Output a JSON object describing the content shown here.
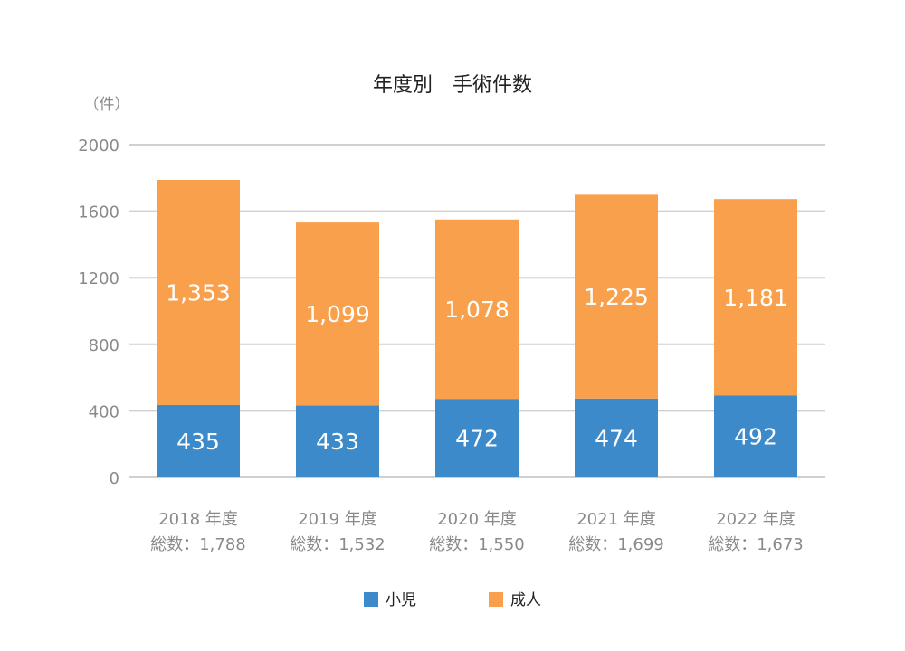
{
  "chart_data": {
    "type": "bar",
    "stacked": true,
    "title": "年度別　手術件数",
    "unit_label": "（件）",
    "ylim": [
      0,
      2000
    ],
    "y_ticks": [
      "0",
      "400",
      "800",
      "1200",
      "1600",
      "2000"
    ],
    "y_tick_values": [
      0,
      400,
      800,
      1200,
      1600,
      2000
    ],
    "grid": true,
    "legend_position": "bottom",
    "categories": [
      "2018 年度",
      "2019 年度",
      "2020 年度",
      "2021 年度",
      "2022 年度"
    ],
    "totals_text": [
      "総数：1,788",
      "総数：1,532",
      "総数：1,550",
      "総数：1,699",
      "総数：1,673"
    ],
    "totals": [
      1788,
      1532,
      1550,
      1699,
      1673
    ],
    "series": [
      {
        "name": "小児",
        "color": "#3d8acb",
        "values": [
          435,
          433,
          472,
          474,
          492
        ],
        "labels": [
          "435",
          "433",
          "472",
          "474",
          "492"
        ]
      },
      {
        "name": "成人",
        "color": "#f9a04c",
        "values": [
          1353,
          1099,
          1078,
          1225,
          1181
        ],
        "labels": [
          "1,353",
          "1,099",
          "1,078",
          "1,225",
          "1,181"
        ]
      }
    ]
  }
}
